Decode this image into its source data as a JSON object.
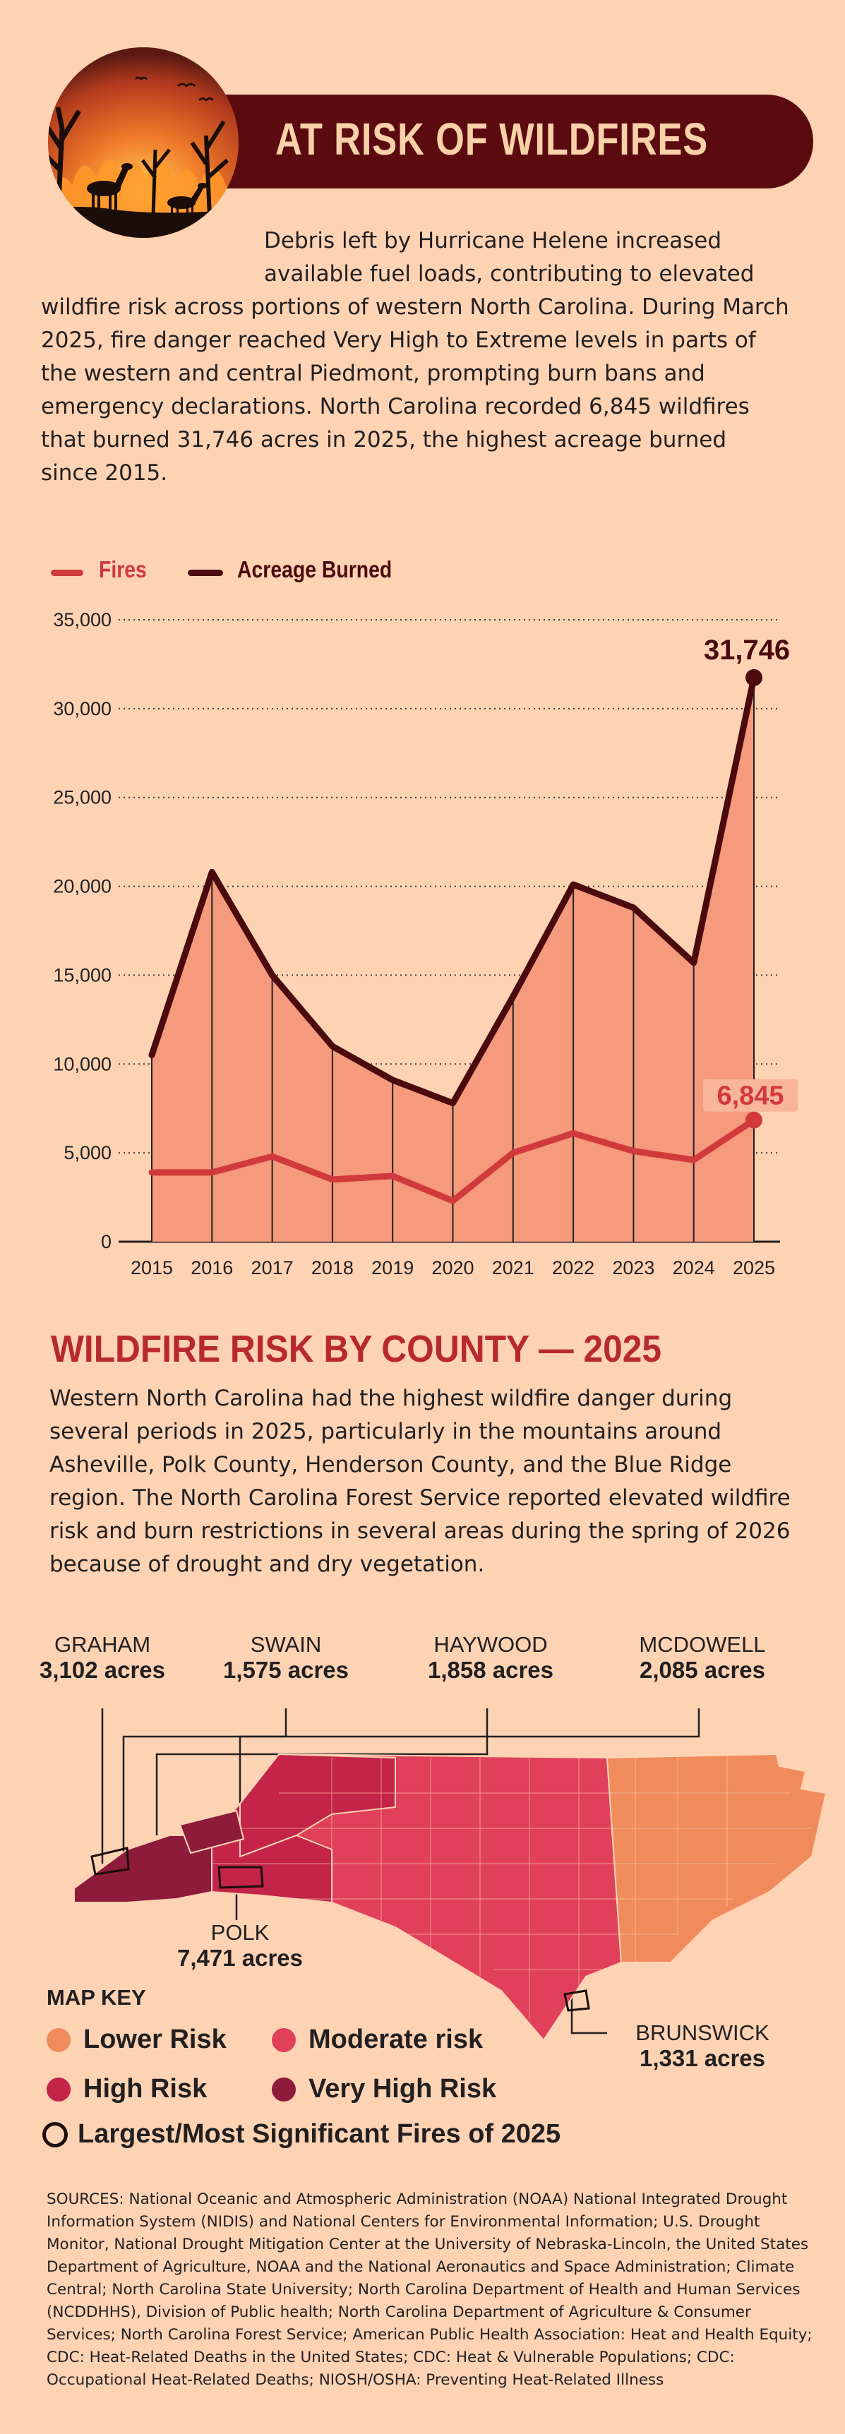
{
  "header": {
    "title": "AT RISK OF WILDFIRES"
  },
  "intro": {
    "first_line_a": "Debris left by Hurricane Helene increased",
    "first_line_b": "available fuel loads, contributing to elevated",
    "rest": "wildfire risk across portions of western North Carolina. During March 2025, fire danger reached Very High to Extreme levels in parts of the western and central Piedmont, prompting burn bans and emergency declarations. North Carolina recorded 6,845 wildfires that burned 31,746 acres in 2025, the highest acreage burned since 2015."
  },
  "colors": {
    "fires": "#d13a3c",
    "acreage": "#4a0a0e",
    "area": "#f59a7c",
    "lower": "#f08b5c",
    "moderate": "#e0405a",
    "high": "#c32448",
    "very_high": "#8e1b3b"
  },
  "chart_data": {
    "type": "line",
    "x": [
      2015,
      2016,
      2017,
      2018,
      2019,
      2020,
      2021,
      2022,
      2023,
      2024,
      2025
    ],
    "series": [
      {
        "name": "Fires",
        "values": [
          3900,
          3900,
          4800,
          3500,
          3700,
          2300,
          5000,
          6100,
          5100,
          4600,
          6845
        ]
      },
      {
        "name": "Acreage Burned",
        "values": [
          10500,
          20800,
          15000,
          11000,
          9100,
          7800,
          13800,
          20100,
          18800,
          15700,
          31746
        ]
      }
    ],
    "yticks": [
      "35,000",
      "30,000",
      "25,000",
      "20,000",
      "15,000",
      "10,000",
      "5,000",
      "0"
    ],
    "ylim": [
      0,
      35000
    ],
    "annotations": {
      "acreage_last": "31,746",
      "fires_last": "6,845"
    },
    "grid": true,
    "legend": "top-left"
  },
  "county": {
    "title": "WILDFIRE RISK BY COUNTY — 2025",
    "text": "Western North Carolina had the highest wildfire danger during several periods in 2025, particularly in the mountains around Asheville, Polk County, Henderson County, and the Blue Ridge region. The North Carolina Forest Service reported elevated wildfire risk and burn restrictions in several areas during the spring of 2026 because of drought and dry vegetation.",
    "callouts": [
      {
        "name": "GRAHAM",
        "acres": "3,102 acres"
      },
      {
        "name": "SWAIN",
        "acres": "1,575 acres"
      },
      {
        "name": "HAYWOOD",
        "acres": "1,858 acres"
      },
      {
        "name": "MCDOWELL",
        "acres": "2,085 acres"
      },
      {
        "name": "POLK",
        "acres": "7,471 acres"
      },
      {
        "name": "BRUNSWICK",
        "acres": "1,331 acres"
      }
    ]
  },
  "map_key": {
    "title": "MAP KEY",
    "items": [
      "Lower Risk",
      "Moderate risk",
      "High Risk",
      "Very High Risk",
      "Largest/Most Significant Fires of 2025"
    ]
  },
  "sources": "SOURCES: National Oceanic and Atmospheric Administration (NOAA) National Integrated Drought Information System (NIDIS) and National Centers for Environmental Information; U.S. Drought Monitor, National Drought Mitigation Center at the University of Nebraska-Lincoln, the United States Department of Agriculture, NOAA and the National Aeronautics and Space Administration; Climate Central; North Carolina State University; North Carolina Department of Health and Human Services (NCDDHHS), Division of Public health; North Carolina Department of Agriculture & Consumer Services; North Carolina Forest Service; American Public Health Association: Heat and Health Equity; CDC: Heat-Related Deaths in the United States; CDC: Heat & Vulnerable Populations; CDC: Occupational Heat-Related Deaths; NIOSH/OSHA: Preventing Heat-Related Illness"
}
